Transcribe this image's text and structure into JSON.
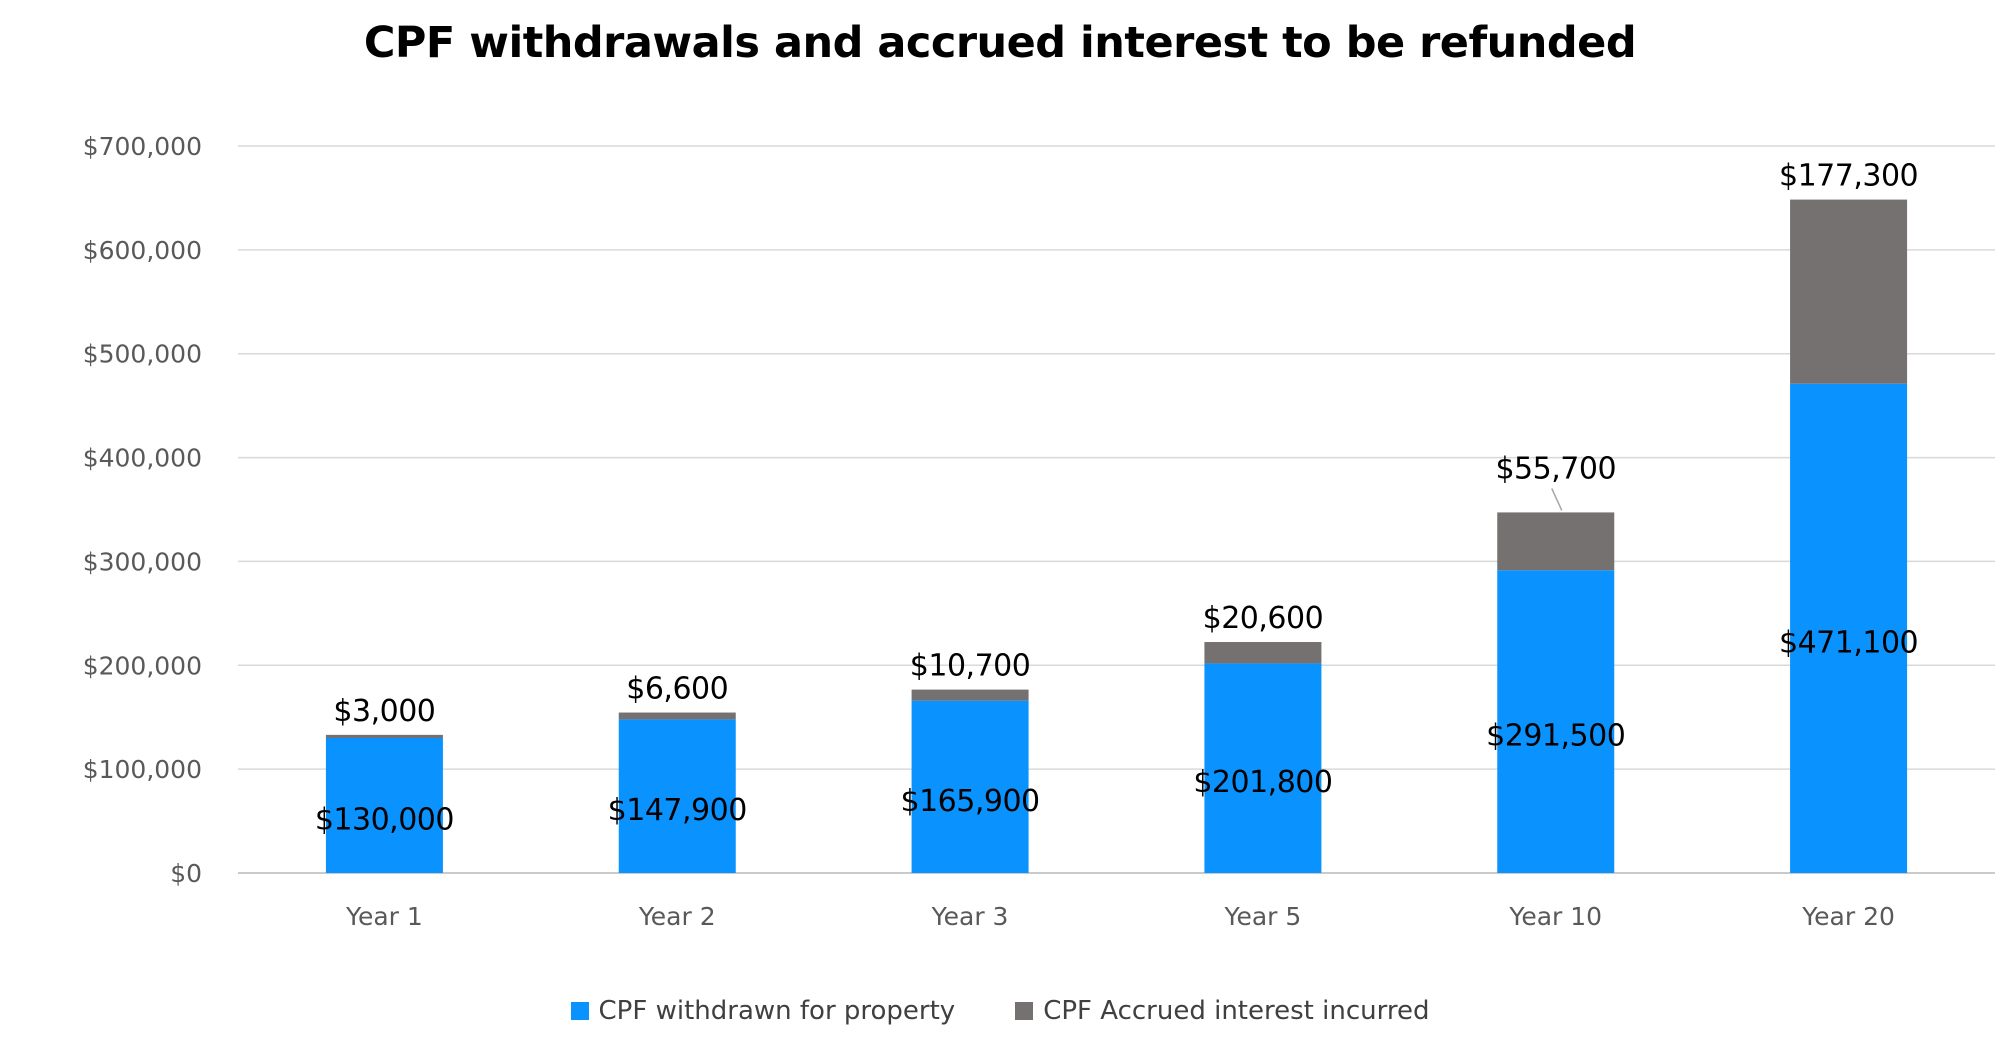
{
  "chart_data": {
    "type": "bar",
    "stacked": true,
    "title": "CPF withdrawals and accrued interest to be refunded",
    "xlabel": "",
    "ylabel": "",
    "categories": [
      "Year 1",
      "Year 2",
      "Year 3",
      "Year 5",
      "Year 10",
      "Year 20"
    ],
    "series": [
      {
        "name": "CPF withdrawn for property",
        "color": "#0a92ff",
        "values": [
          130000,
          147900,
          165900,
          201800,
          291500,
          471100
        ],
        "labels": [
          "$130,000",
          "$147,900",
          "$165,900",
          "$201,800",
          "$291,500",
          "$471,100"
        ]
      },
      {
        "name": "CPF Accrued interest incurred",
        "color": "#757171",
        "values": [
          3000,
          6600,
          10700,
          20600,
          55700,
          177300
        ],
        "labels": [
          "$3,000",
          "$6,600",
          "$10,700",
          "$20,600",
          "$55,700",
          "$177,300"
        ]
      }
    ],
    "ylim": [
      0,
      700000
    ],
    "yticks": [
      0,
      100000,
      200000,
      300000,
      400000,
      500000,
      600000,
      700000
    ],
    "ytick_labels": [
      "$0",
      "$100,000",
      "$200,000",
      "$300,000",
      "$400,000",
      "$500,000",
      "$600,000",
      "$700,000"
    ],
    "grid": true,
    "legend_position": "bottom"
  }
}
